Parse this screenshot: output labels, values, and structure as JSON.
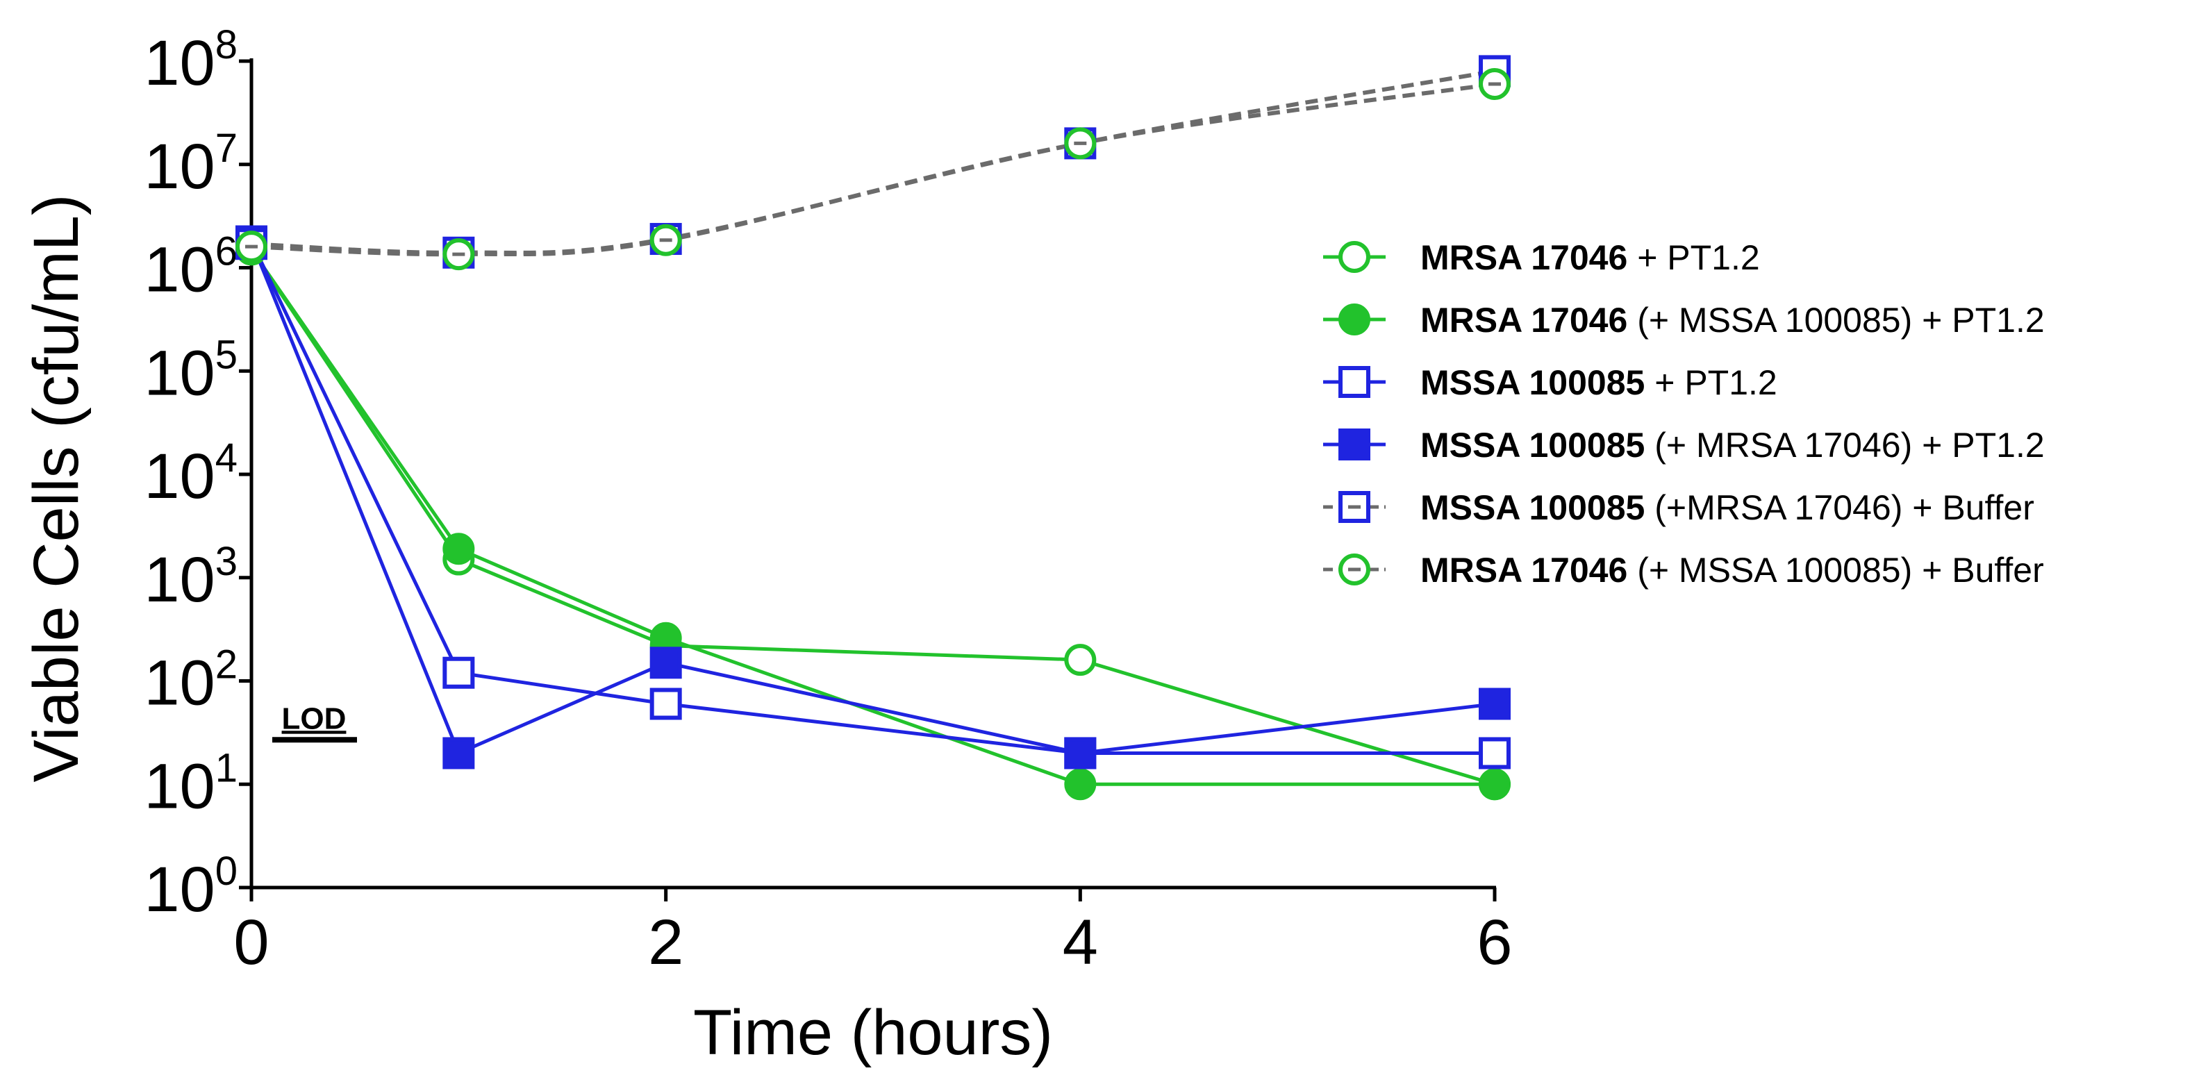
{
  "chart_data": {
    "type": "line",
    "xlabel": "Time (hours)",
    "ylabel": "Viable Cells (cfu/mL)",
    "yscale": "log10",
    "ylim": [
      1,
      100000000
    ],
    "xlim": [
      0,
      6
    ],
    "x_ticks": [
      "0",
      "2",
      "4",
      "6"
    ],
    "x_tick_values": [
      0,
      2,
      4,
      6
    ],
    "y_ticks": [
      {
        "base": "10",
        "exp": "0",
        "value": 1
      },
      {
        "base": "10",
        "exp": "1",
        "value": 10
      },
      {
        "base": "10",
        "exp": "2",
        "value": 100
      },
      {
        "base": "10",
        "exp": "3",
        "value": 1000
      },
      {
        "base": "10",
        "exp": "4",
        "value": 10000
      },
      {
        "base": "10",
        "exp": "5",
        "value": 100000
      },
      {
        "base": "10",
        "exp": "6",
        "value": 1000000
      },
      {
        "base": "10",
        "exp": "7",
        "value": 10000000
      },
      {
        "base": "10",
        "exp": "8",
        "value": 100000000
      }
    ],
    "lod": {
      "label": "LOD",
      "value": 10
    },
    "legend_position": "right",
    "series": [
      {
        "name_bold": "MRSA 17046",
        "name_rest": " + PT1.2",
        "color": "#22c22c",
        "marker": "circle",
        "filled": false,
        "dashed": false,
        "x": [
          0,
          1,
          2,
          4,
          6
        ],
        "y": [
          1500000,
          1500,
          220,
          160,
          10
        ]
      },
      {
        "name_bold": "MRSA 17046",
        "name_rest": " (+ MSSA 100085) + PT1.2",
        "color": "#22c22c",
        "marker": "circle",
        "filled": true,
        "dashed": false,
        "x": [
          0,
          1,
          2,
          4,
          6
        ],
        "y": [
          1500000,
          1900,
          260,
          10,
          10
        ]
      },
      {
        "name_bold": "MSSA 100085",
        "name_rest": " + PT1.2",
        "color": "#1f24e0",
        "marker": "square",
        "filled": false,
        "dashed": false,
        "x": [
          0,
          1,
          2,
          4,
          6
        ],
        "y": [
          1800000,
          120,
          60,
          20,
          20
        ]
      },
      {
        "name_bold": "MSSA 100085",
        "name_rest": " (+ MRSA 17046) + PT1.2",
        "color": "#1f24e0",
        "marker": "square",
        "filled": true,
        "dashed": false,
        "x": [
          0,
          1,
          2,
          4,
          6
        ],
        "y": [
          1800000,
          20,
          150,
          20,
          60
        ]
      },
      {
        "name_bold": "MSSA 100085",
        "name_rest": " (+MRSA 17046) + Buffer",
        "color": "#1f24e0",
        "marker": "square",
        "filled": false,
        "dashed": true,
        "line_color": "#6b6b6b",
        "x": [
          0,
          1,
          2,
          4,
          6
        ],
        "y": [
          1700000,
          1400000,
          1900000,
          16000000,
          80000000
        ]
      },
      {
        "name_bold": "MRSA 17046",
        "name_rest": " (+ MSSA 100085) + Buffer",
        "color": "#22c22c",
        "marker": "circle",
        "filled": false,
        "dashed": true,
        "line_color": "#6b6b6b",
        "x": [
          0,
          1,
          2,
          4,
          6
        ],
        "y": [
          1600000,
          1350000,
          1850000,
          16000000,
          60000000
        ]
      }
    ]
  }
}
